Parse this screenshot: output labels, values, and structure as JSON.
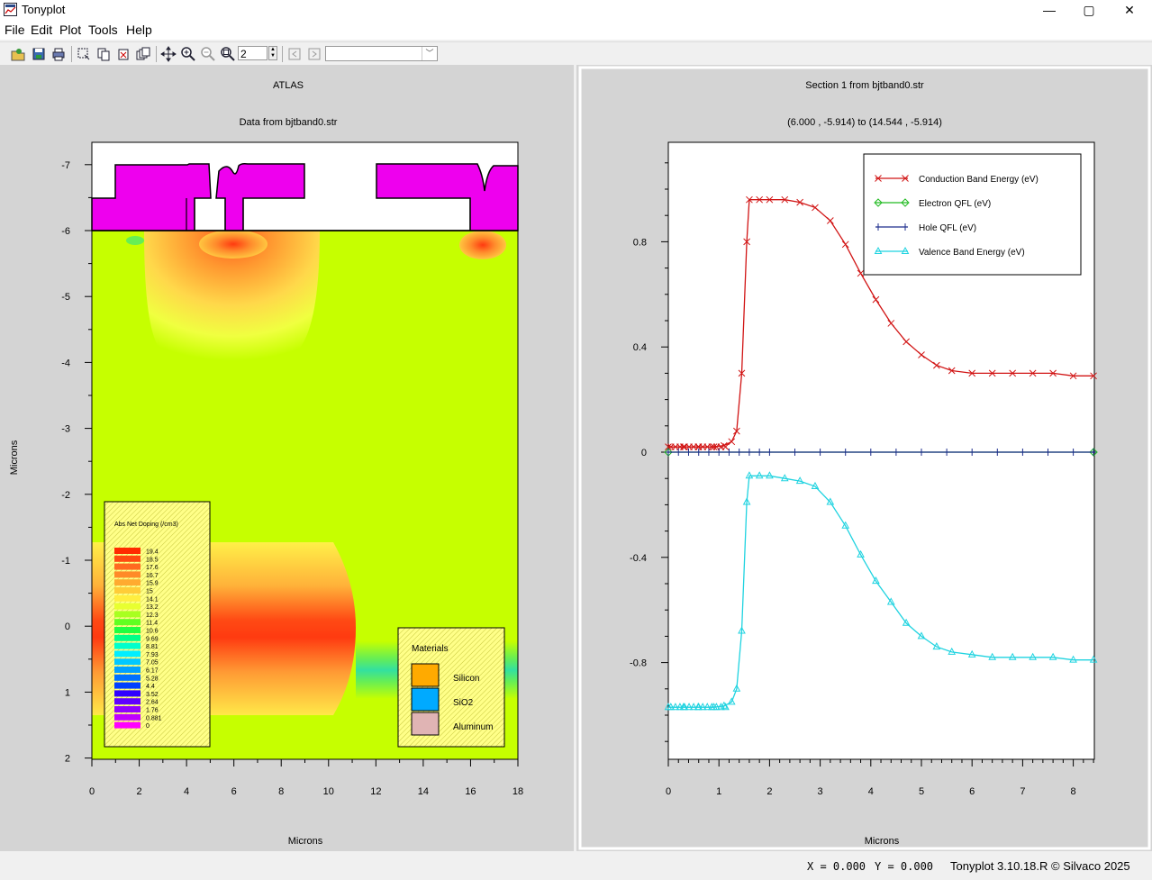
{
  "window": {
    "title": "Tonyplot",
    "minimize_glyph": "—",
    "maximize_glyph": "▢",
    "close_glyph": "✕"
  },
  "menu": [
    "File",
    "Edit",
    "Plot",
    "Tools",
    "Help"
  ],
  "toolbar": {
    "zoom_value": "2",
    "dropdown_value": ""
  },
  "left_plot": {
    "title": "ATLAS",
    "subtitle": "Data from bjtband0.str",
    "xlabel": "Microns",
    "ylabel": "Microns",
    "x_ticks": [
      "0",
      "2",
      "4",
      "6",
      "8",
      "10",
      "12",
      "14",
      "16",
      "18"
    ],
    "y_ticks": [
      "-7",
      "-6",
      "-5",
      "-4",
      "-3",
      "-2",
      "-1",
      "0",
      "1",
      "2"
    ],
    "legend_title": "Abs Net Doping (/cm3)",
    "legend_values": [
      "19.4",
      "18.5",
      "17.6",
      "16.7",
      "15.9",
      "15",
      "14.1",
      "13.2",
      "12.3",
      "11.4",
      "10.6",
      "9.69",
      "8.81",
      "7.93",
      "7.05",
      "6.17",
      "5.28",
      "4.4",
      "3.52",
      "2.64",
      "1.76",
      "0.881",
      "0"
    ],
    "materials_title": "Materials",
    "materials": [
      {
        "name": "Silicon",
        "color": "#ffaa00"
      },
      {
        "name": "SiO2",
        "color": "#00aaff"
      },
      {
        "name": "Aluminum",
        "color": "#e0b4b4"
      }
    ]
  },
  "right_plot": {
    "title": "Section 1 from bjtband0.str",
    "subtitle": "(6.000 , -5.914) to (14.544 , -5.914)",
    "xlabel": "Microns",
    "x_ticks": [
      "0",
      "1",
      "2",
      "3",
      "4",
      "5",
      "6",
      "7",
      "8"
    ],
    "y_ticks": [
      "0.8",
      "0.4",
      "0",
      "-0.4",
      "-0.8"
    ],
    "legend": [
      "Conduction Band Energy (eV)",
      "Electron QFL (eV)",
      "Hole QFL (eV)",
      "Valence Band Energy (eV)"
    ]
  },
  "chart_data": {
    "type": "line",
    "title": "Section 1 from bjtband0.str",
    "subtitle": "(6.000 , -5.914) to (14.544 , -5.914)",
    "xlabel": "Microns",
    "ylabel": "",
    "xlim": [
      0,
      8.4
    ],
    "ylim": [
      -1.16,
      1.18
    ],
    "series": [
      {
        "name": "Conduction Band Energy (eV)",
        "color": "#d11414",
        "marker": "x",
        "x": [
          0,
          0.3,
          0.6,
          0.9,
          1.1,
          1.25,
          1.35,
          1.45,
          1.55,
          1.6,
          1.8,
          2.0,
          2.3,
          2.6,
          2.9,
          3.2,
          3.5,
          3.8,
          4.1,
          4.4,
          4.7,
          5.0,
          5.3,
          5.6,
          6.0,
          6.4,
          6.8,
          7.2,
          7.6,
          8.0,
          8.4
        ],
        "y": [
          0.02,
          0.02,
          0.02,
          0.02,
          0.025,
          0.04,
          0.08,
          0.3,
          0.8,
          0.96,
          0.96,
          0.96,
          0.96,
          0.95,
          0.93,
          0.88,
          0.79,
          0.68,
          0.58,
          0.49,
          0.42,
          0.37,
          0.33,
          0.31,
          0.3,
          0.3,
          0.3,
          0.3,
          0.3,
          0.29,
          0.29
        ]
      },
      {
        "name": "Electron QFL (eV)",
        "color": "#22bb22",
        "marker": "diamond",
        "x": [
          0,
          8.4
        ],
        "y": [
          0,
          0
        ]
      },
      {
        "name": "Hole QFL (eV)",
        "color": "#1c2c8c",
        "marker": "plus",
        "x": [
          0,
          0.2,
          0.4,
          0.6,
          0.8,
          1.0,
          1.2,
          1.4,
          1.6,
          1.8,
          2.0,
          2.5,
          3.0,
          3.5,
          4.0,
          4.5,
          5.0,
          5.5,
          6.0,
          6.5,
          7.0,
          7.5,
          8.0,
          8.4
        ],
        "y": [
          0,
          0,
          0,
          0,
          0,
          0,
          0,
          0,
          0,
          0,
          0,
          0,
          0,
          0,
          0,
          0,
          0,
          0,
          0,
          0,
          0,
          0,
          0,
          0
        ]
      },
      {
        "name": "Valence Band Energy (eV)",
        "color": "#1fd3e0",
        "marker": "triangle",
        "x": [
          0,
          0.3,
          0.6,
          0.9,
          1.1,
          1.25,
          1.35,
          1.45,
          1.55,
          1.6,
          1.8,
          2.0,
          2.3,
          2.6,
          2.9,
          3.2,
          3.5,
          3.8,
          4.1,
          4.4,
          4.7,
          5.0,
          5.3,
          5.6,
          6.0,
          6.4,
          6.8,
          7.2,
          7.6,
          8.0,
          8.4
        ],
        "y": [
          -0.97,
          -0.97,
          -0.97,
          -0.97,
          -0.965,
          -0.95,
          -0.9,
          -0.68,
          -0.19,
          -0.09,
          -0.09,
          -0.09,
          -0.1,
          -0.11,
          -0.13,
          -0.19,
          -0.28,
          -0.39,
          -0.49,
          -0.57,
          -0.65,
          -0.7,
          -0.74,
          -0.76,
          -0.77,
          -0.78,
          -0.78,
          -0.78,
          -0.78,
          -0.79,
          -0.79
        ]
      }
    ]
  },
  "status": {
    "x": "X = 0.000",
    "y": "Y = 0.000",
    "copyright": "Tonyplot 3.10.18.R © Silvaco 2025"
  }
}
